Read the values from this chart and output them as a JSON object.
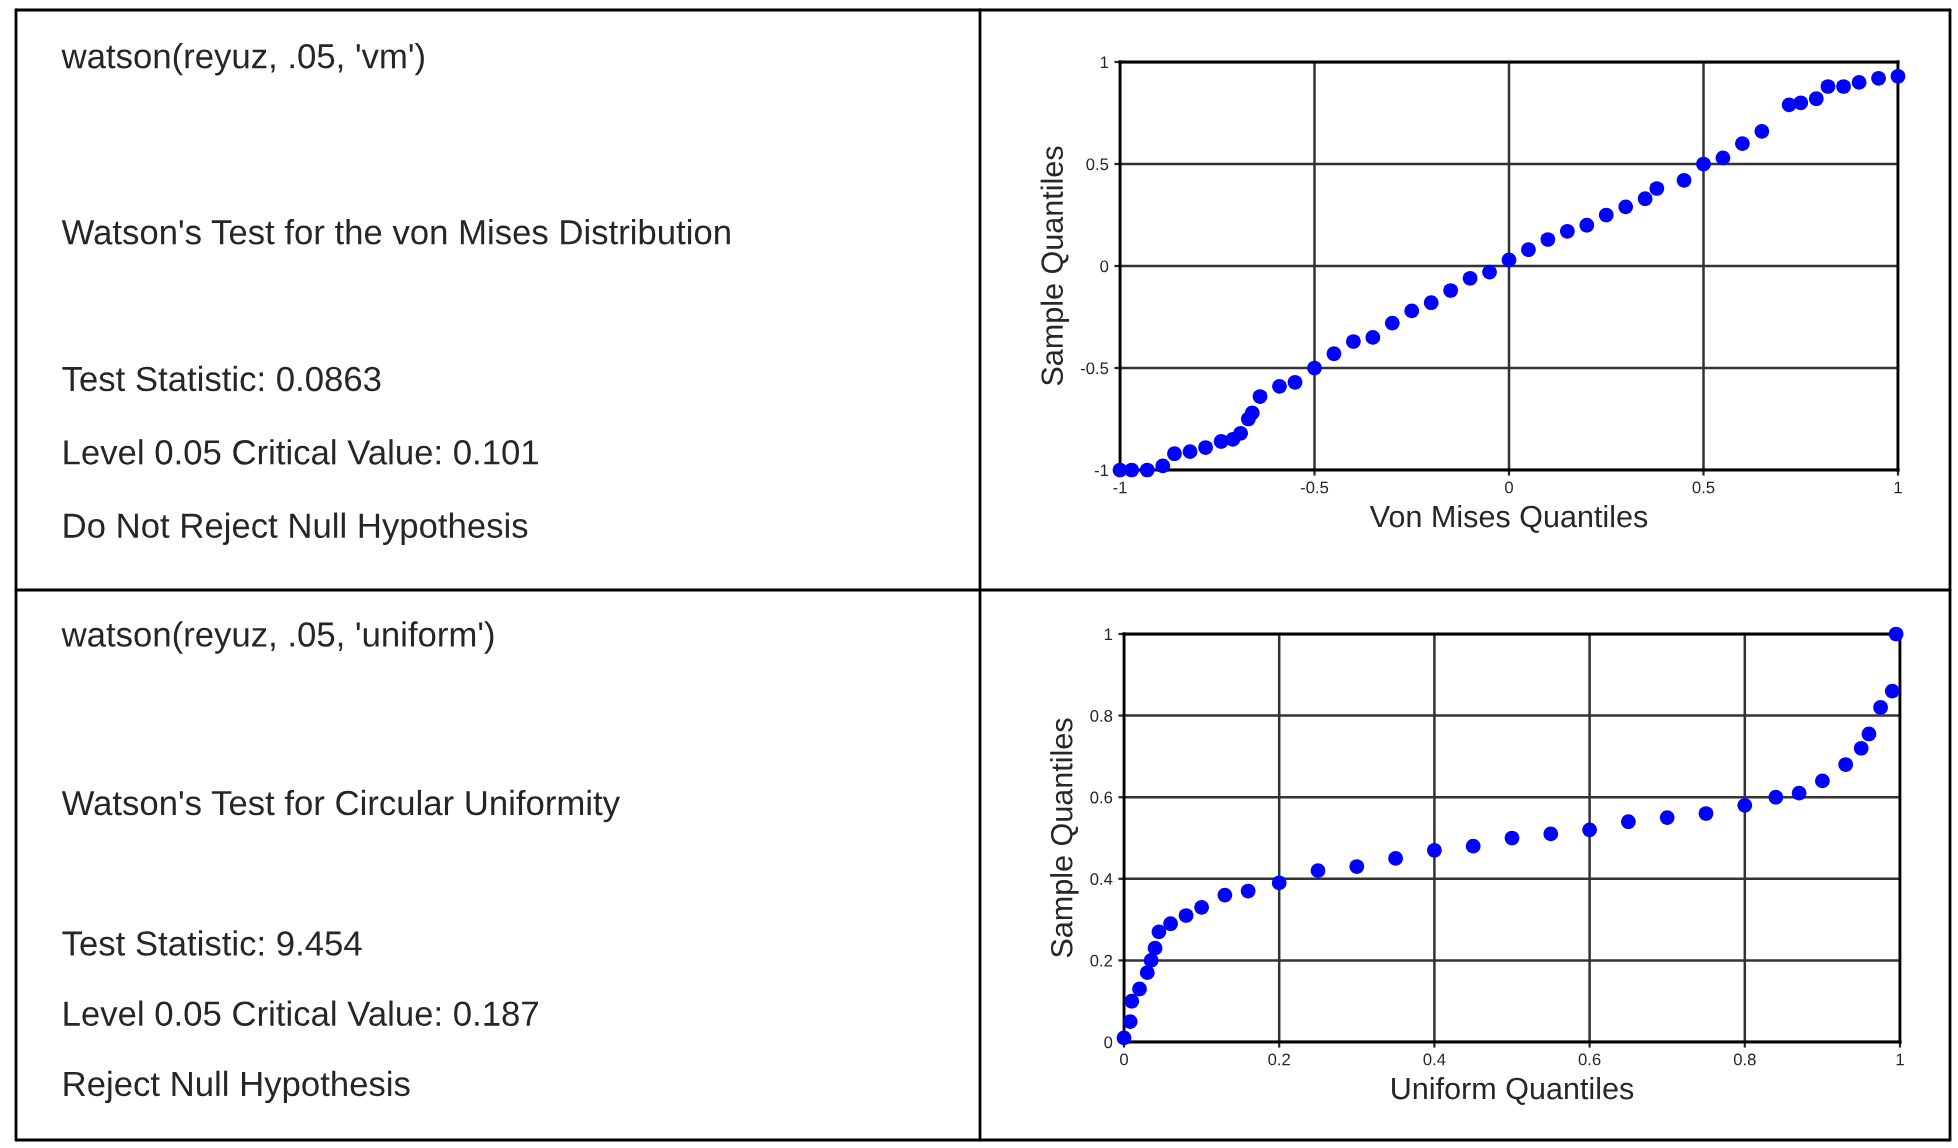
{
  "chart_data": [
    {
      "type": "other",
      "annotations": [
        "watson(reyuz, .05, 'vm')",
        "Watson's Test for the von Mises Distribution",
        "Test Statistic: 0.0863",
        "Level 0.05 Critical Value: 0.101",
        "Do Not Reject Null Hypothesis"
      ]
    },
    {
      "type": "scatter",
      "xlabel": "Von Mises Quantiles",
      "ylabel": "Sample Quantiles",
      "xlim": [
        -1,
        1
      ],
      "ylim": [
        -1,
        1
      ],
      "xticks": [
        -1,
        -0.5,
        0,
        0.5,
        1
      ],
      "yticks": [
        -1,
        -0.5,
        0,
        0.5,
        1
      ],
      "grid": true,
      "marker": "circle",
      "x": [
        -1,
        -0.97,
        -0.93,
        -0.89,
        -0.86,
        -0.82,
        -0.78,
        -0.74,
        -0.71,
        -0.69,
        -0.67,
        -0.66,
        -0.64,
        -0.59,
        -0.55,
        -0.5,
        -0.45,
        -0.4,
        -0.35,
        -0.3,
        -0.25,
        -0.2,
        -0.15,
        -0.1,
        -0.05,
        0,
        0.05,
        0.1,
        0.15,
        0.2,
        0.25,
        0.3,
        0.35,
        0.38,
        0.45,
        0.5,
        0.55,
        0.6,
        0.65,
        0.72,
        0.75,
        0.79,
        0.82,
        0.86,
        0.9,
        0.95,
        1
      ],
      "series": [
        {
          "color": "#0000ff",
          "values": [
            -1,
            -1,
            -1,
            -0.98,
            -0.92,
            -0.91,
            -0.89,
            -0.86,
            -0.85,
            -0.82,
            -0.75,
            -0.72,
            -0.64,
            -0.59,
            -0.57,
            -0.5,
            -0.43,
            -0.37,
            -0.35,
            -0.28,
            -0.22,
            -0.18,
            -0.12,
            -0.06,
            -0.03,
            0.03,
            0.08,
            0.13,
            0.17,
            0.2,
            0.25,
            0.29,
            0.33,
            0.38,
            0.42,
            0.5,
            0.53,
            0.6,
            0.66,
            0.79,
            0.8,
            0.82,
            0.88,
            0.88,
            0.9,
            0.92,
            0.93
          ]
        }
      ]
    },
    {
      "type": "other",
      "annotations": [
        "watson(reyuz, .05, 'uniform')",
        "Watson's Test for Circular Uniformity",
        "Test Statistic: 9.454",
        "Level 0.05 Critical Value: 0.187",
        "Reject Null Hypothesis"
      ]
    },
    {
      "type": "scatter",
      "xlabel": "Uniform Quantiles",
      "ylabel": "Sample Quantiles",
      "xlim": [
        0,
        1
      ],
      "ylim": [
        0,
        1
      ],
      "xticks": [
        0,
        0.2,
        0.4,
        0.6,
        0.8,
        1
      ],
      "yticks": [
        0,
        0.2,
        0.4,
        0.6,
        0.8,
        1
      ],
      "grid": true,
      "marker": "circle",
      "x": [
        0,
        0.008,
        0.01,
        0.02,
        0.03,
        0.035,
        0.04,
        0.045,
        0.06,
        0.08,
        0.1,
        0.13,
        0.16,
        0.2,
        0.25,
        0.3,
        0.35,
        0.4,
        0.45,
        0.5,
        0.55,
        0.6,
        0.65,
        0.7,
        0.75,
        0.8,
        0.84,
        0.87,
        0.9,
        0.93,
        0.95,
        0.96,
        0.975,
        0.99,
        0.995
      ],
      "series": [
        {
          "color": "#0000ff",
          "values": [
            0.01,
            0.05,
            0.1,
            0.13,
            0.17,
            0.2,
            0.23,
            0.27,
            0.29,
            0.31,
            0.33,
            0.36,
            0.37,
            0.39,
            0.42,
            0.43,
            0.45,
            0.47,
            0.48,
            0.5,
            0.51,
            0.52,
            0.54,
            0.55,
            0.56,
            0.58,
            0.6,
            0.61,
            0.64,
            0.68,
            0.72,
            0.755,
            0.82,
            0.86,
            1.0
          ]
        }
      ]
    }
  ]
}
